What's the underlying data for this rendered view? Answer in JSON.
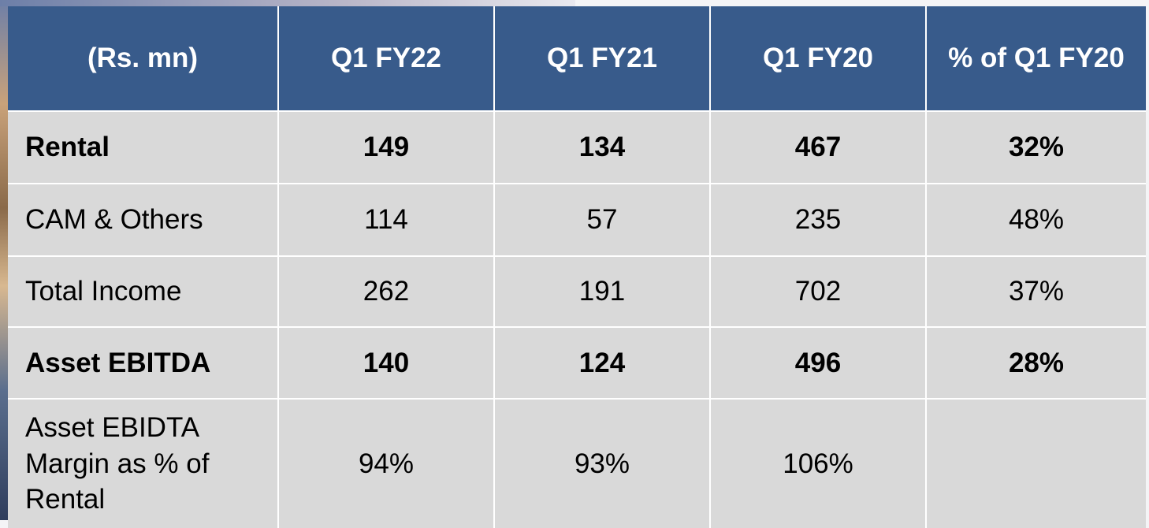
{
  "table": {
    "header": [
      "(Rs. mn)",
      "Q1 FY22",
      "Q1 FY21",
      "Q1 FY20",
      "% of Q1 FY20"
    ],
    "rows": [
      {
        "bold": true,
        "cells": [
          "Rental",
          "149",
          "134",
          "467",
          "32%"
        ]
      },
      {
        "bold": false,
        "cells": [
          "CAM & Others",
          "114",
          "57",
          "235",
          "48%"
        ]
      },
      {
        "bold": false,
        "cells": [
          "Total Income",
          "262",
          "191",
          "702",
          "37%"
        ]
      },
      {
        "bold": true,
        "cells": [
          "Asset EBITDA",
          "140",
          "124",
          "496",
          "28%"
        ]
      },
      {
        "bold": false,
        "cells": [
          "Asset EBIDTA Margin as % of Rental",
          "94%",
          "93%",
          "106%"
        ]
      }
    ]
  }
}
